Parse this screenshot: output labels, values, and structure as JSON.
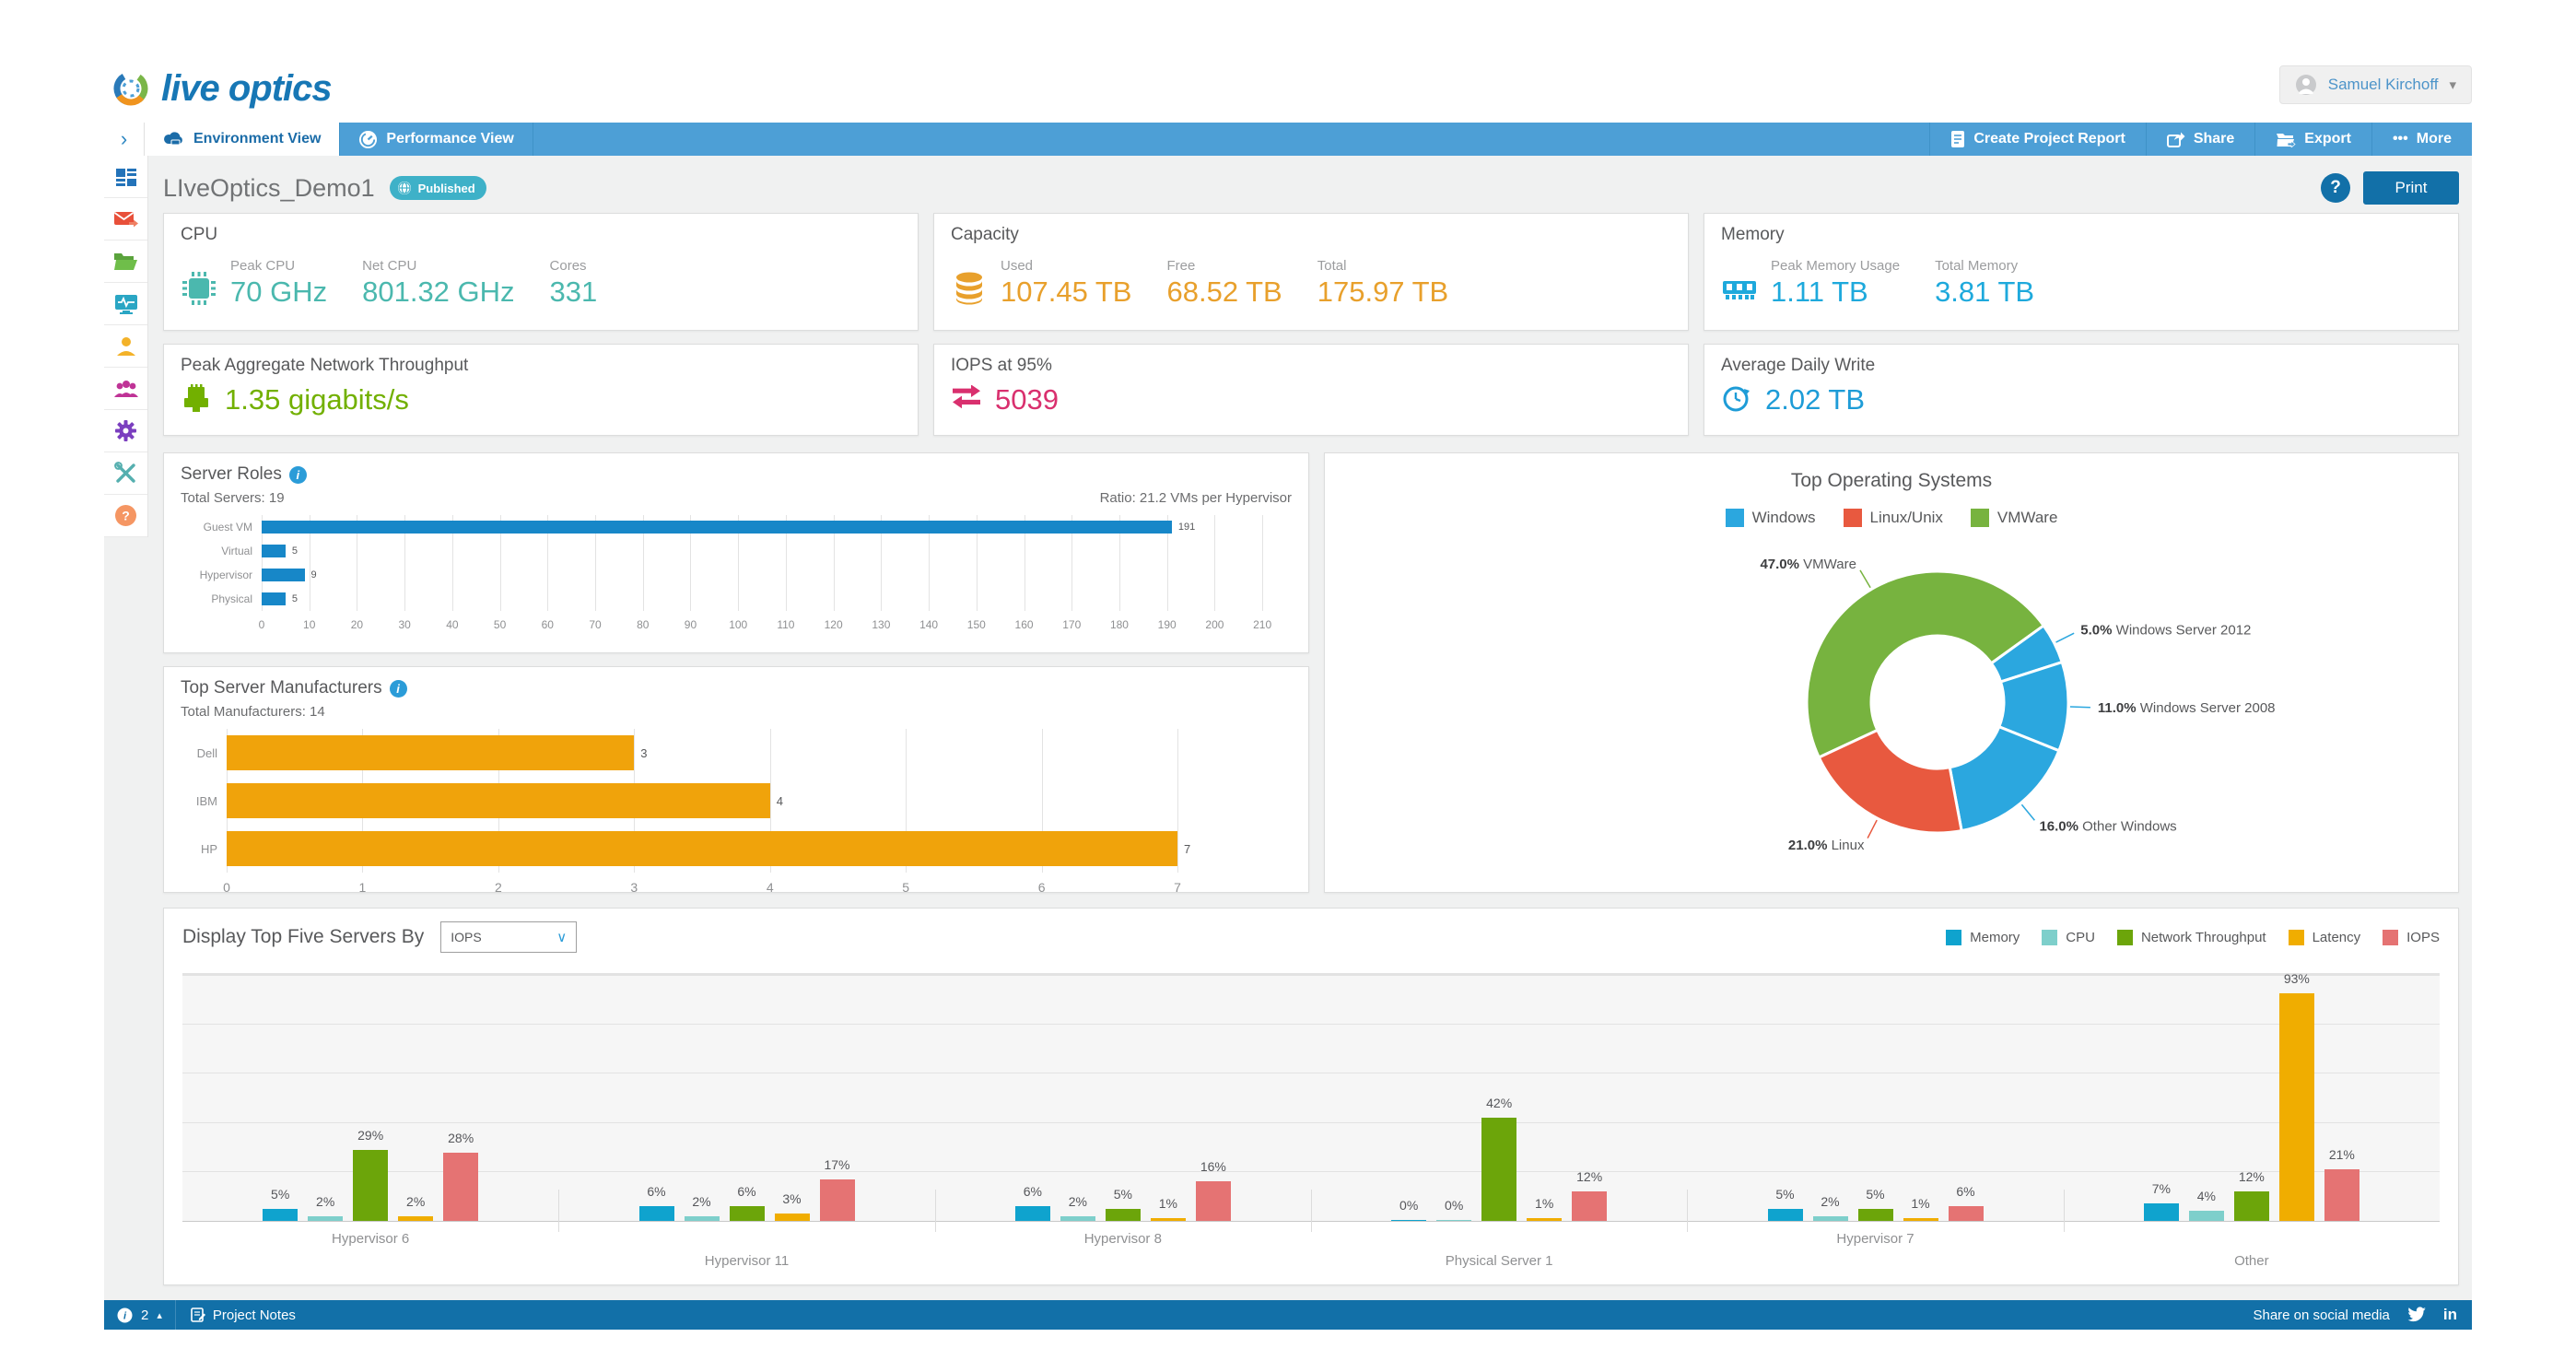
{
  "header": {
    "logo_text": "live optics",
    "user_name": "Samuel Kirchoff"
  },
  "nav": {
    "tabs": [
      {
        "label": "Environment View"
      },
      {
        "label": "Performance View"
      }
    ],
    "actions": [
      {
        "label": "Create Project Report"
      },
      {
        "label": "Share"
      },
      {
        "label": "Export"
      },
      {
        "label": "More"
      }
    ],
    "more_dots": "•••"
  },
  "sidebar": {
    "items": [
      {
        "name": "dashboard"
      },
      {
        "name": "mail"
      },
      {
        "name": "projects-folder"
      },
      {
        "name": "monitor-activity"
      },
      {
        "name": "user"
      },
      {
        "name": "team"
      },
      {
        "name": "settings-gear"
      },
      {
        "name": "tools"
      },
      {
        "name": "help"
      }
    ]
  },
  "page": {
    "title": "LIveOptics_Demo1",
    "badge": "Published",
    "help_label": "?",
    "print_label": "Print"
  },
  "summary_cards": {
    "cpu": {
      "title": "CPU",
      "color": "#4bb8ae",
      "metrics": [
        {
          "label": "Peak CPU",
          "value": "70 GHz"
        },
        {
          "label": "Net CPU",
          "value": "801.32 GHz"
        },
        {
          "label": "Cores",
          "value": "331"
        }
      ]
    },
    "capacity": {
      "title": "Capacity",
      "color": "#e8a02c",
      "metrics": [
        {
          "label": "Used",
          "value": "107.45 TB"
        },
        {
          "label": "Free",
          "value": "68.52 TB"
        },
        {
          "label": "Total",
          "value": "175.97 TB"
        }
      ]
    },
    "memory": {
      "title": "Memory",
      "color": "#1ea9dc",
      "metrics": [
        {
          "label": "Peak Memory Usage",
          "value": "1.11 TB"
        },
        {
          "label": "Total Memory",
          "value": "3.81 TB"
        }
      ]
    },
    "network": {
      "title": "Peak Aggregate Network Throughput",
      "value": "1.35 gigabits/s",
      "color": "#72b000"
    },
    "iops": {
      "title": "IOPS at 95%",
      "value": "5039",
      "color": "#d9306e"
    },
    "daily_write": {
      "title": "Average Daily Write",
      "value": "2.02 TB",
      "color": "#1e9cd7"
    }
  },
  "chart_data": [
    {
      "type": "bar",
      "orientation": "horizontal",
      "title": "Server Roles",
      "subtitle_left": "Total Servers: 19",
      "subtitle_right": "Ratio: 21.2 VMs per Hypervisor",
      "categories": [
        "Guest VM",
        "Virtual",
        "Hypervisor",
        "Physical"
      ],
      "values": [
        191,
        5,
        9,
        5
      ],
      "xlim": [
        0,
        210
      ],
      "xtick_step": 10,
      "x_display_max": 215,
      "bar_color": "#1787c8",
      "grid": true
    },
    {
      "type": "bar",
      "orientation": "horizontal",
      "title": "Top Server Manufacturers",
      "subtitle_left": "Total Manufacturers: 14",
      "categories": [
        "Dell",
        "IBM",
        "HP"
      ],
      "values": [
        3,
        4,
        7
      ],
      "xlim": [
        0,
        7
      ],
      "xtick_step": 1,
      "x_display_max": 7.8,
      "bar_color": "#f0a30b",
      "grid": true
    },
    {
      "type": "pie",
      "donut": true,
      "title": "Top Operating Systems",
      "start_angle": 245,
      "legend": [
        {
          "label": "Windows",
          "color": "#2ba7df"
        },
        {
          "label": "Linux/Unix",
          "color": "#e8593f"
        },
        {
          "label": "VMWare",
          "color": "#77b33f"
        }
      ],
      "slices": [
        {
          "label": "VMWare",
          "pct": 47.0,
          "color": "#77b33f"
        },
        {
          "label": "Windows Server 2012",
          "pct": 5.0,
          "color": "#2ba7df"
        },
        {
          "label": "Windows Server 2008",
          "pct": 11.0,
          "color": "#2ba7df"
        },
        {
          "label": "Other Windows",
          "pct": 16.0,
          "color": "#2ba7df"
        },
        {
          "label": "Linux",
          "pct": 21.0,
          "color": "#e8593f"
        }
      ]
    },
    {
      "type": "bar",
      "orientation": "vertical",
      "grouped": true,
      "control_label": "Display Top Five Servers By",
      "control_value": "IOPS",
      "categories": [
        "Hypervisor 6",
        "Hypervisor 11",
        "Hypervisor 8",
        "Physical Server 1",
        "Hypervisor 7",
        "Other"
      ],
      "series": [
        {
          "name": "Memory",
          "color": "#0fa3ce",
          "values": [
            5,
            6,
            6,
            0,
            5,
            7
          ]
        },
        {
          "name": "CPU",
          "color": "#7ecfcb",
          "values": [
            2,
            2,
            2,
            0,
            2,
            4
          ]
        },
        {
          "name": "Network Throughput",
          "color": "#6ca50a",
          "values": [
            29,
            6,
            5,
            42,
            5,
            12
          ]
        },
        {
          "name": "Latency",
          "color": "#f0ad00",
          "values": [
            2,
            3,
            1,
            1,
            1,
            93
          ]
        },
        {
          "name": "IOPS",
          "color": "#e57373",
          "values": [
            28,
            17,
            16,
            12,
            6,
            21
          ]
        }
      ],
      "ylim": [
        0,
        100
      ],
      "unit": "%",
      "grid_step": 20
    }
  ],
  "footer": {
    "counter": "2",
    "notes_label": "Project Notes",
    "share_label": "Share on social media"
  }
}
